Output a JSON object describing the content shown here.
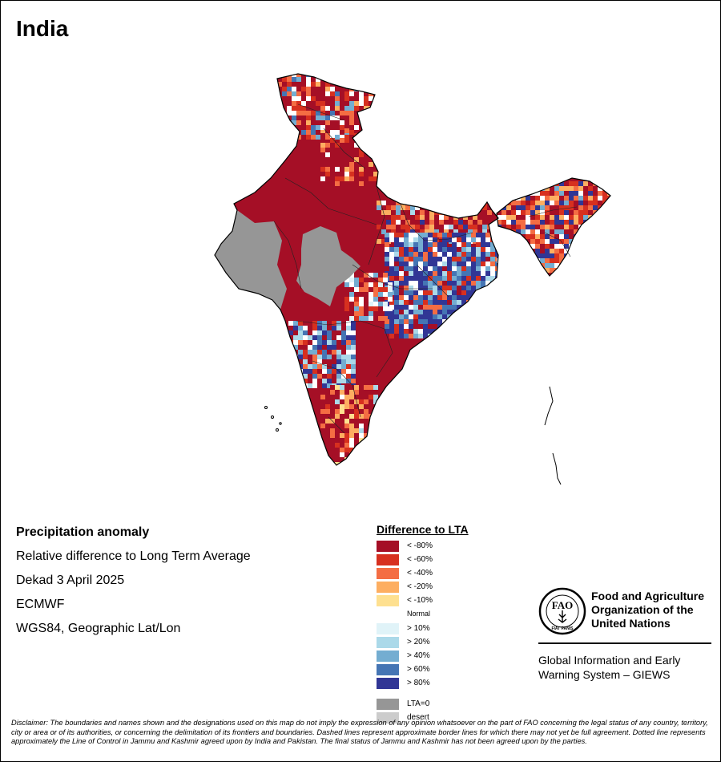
{
  "title": "India",
  "info": {
    "heading": "Precipitation anomaly",
    "line1": "Relative difference to Long Term Average",
    "line2": "Dekad 3 April 2025",
    "line3": "ECMWF",
    "line4": "WGS84, Geographic Lat/Lon"
  },
  "legend": {
    "title": "Difference to LTA",
    "items": [
      {
        "label": "< -80%",
        "color": "#a50f26"
      },
      {
        "label": "< -60%",
        "color": "#d7301f"
      },
      {
        "label": "< -40%",
        "color": "#f46d43"
      },
      {
        "label": "< -20%",
        "color": "#fdae61"
      },
      {
        "label": "< -10%",
        "color": "#fee090"
      },
      {
        "label": "Normal",
        "color": "#ffffff"
      },
      {
        "label": "> 10%",
        "color": "#e0f3f8"
      },
      {
        "label": "> 20%",
        "color": "#abd9e9"
      },
      {
        "label": "> 40%",
        "color": "#74add1"
      },
      {
        "label": "> 60%",
        "color": "#4575b4"
      },
      {
        "label": "> 80%",
        "color": "#313695"
      },
      {
        "label": "LTA=0",
        "color": "#969696"
      },
      {
        "label": "desert",
        "color": "#cccccc"
      }
    ]
  },
  "org": {
    "name_line1": "Food and Agriculture",
    "name_line2": "Organization of the",
    "name_line3": "United Nations",
    "logo_text": "FAO",
    "logo_motto": "FIAT PANIS",
    "system_line1": "Global Information and Early",
    "system_line2": "Warning System – GIEWS"
  },
  "disclaimer": "Disclaimer: The boundaries and names shown and the designations used on this map do not imply the expression of any opinion whatsoever on the part of FAO concerning the legal status of any country, territory, city or area or of its authorities, or concerning the delimitation of its frontiers and boundaries. Dashed lines represent approximate border lines for which there may not yet be full agreement. Dotted line represents approximately the Line of Control in Jammu and Kashmir agreed upon by India and Pakistan. The final status of Jammu and Kashmir has not been agreed upon by the parties."
}
